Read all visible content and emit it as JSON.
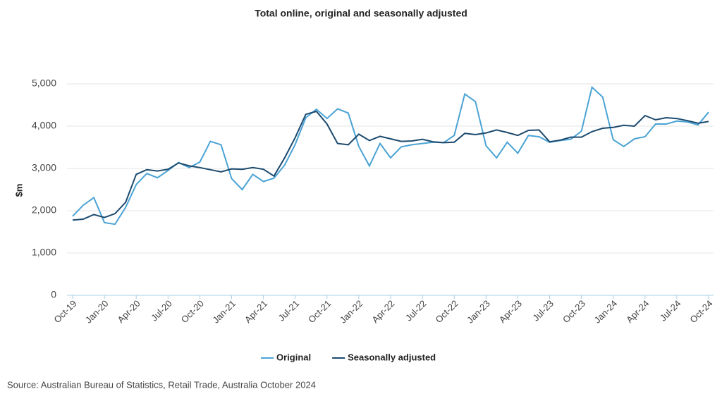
{
  "chart_data": {
    "type": "line",
    "title": "Total online, original and seasonally adjusted",
    "y_label": "$m",
    "source": "Source: Australian Bureau of Statistics, Retail Trade, Australia October 2024",
    "categories": [
      "Oct-19",
      null,
      null,
      "Jan-20",
      null,
      null,
      "Apr-20",
      null,
      null,
      "Jul-20",
      null,
      null,
      "Oct-20",
      null,
      null,
      "Jan-21",
      null,
      null,
      "Apr-21",
      null,
      null,
      "Jul-21",
      null,
      null,
      "Oct-21",
      null,
      null,
      "Jan-22",
      null,
      null,
      "Apr-22",
      null,
      null,
      "Jul-22",
      null,
      null,
      "Oct-22",
      null,
      null,
      "Jan-23",
      null,
      null,
      "Apr-23",
      null,
      null,
      "Jul-23",
      null,
      null,
      "Oct-23",
      null,
      null,
      "Jan-24",
      null,
      null,
      "Apr-24",
      null,
      null,
      "Jul-24",
      null,
      null,
      "Oct-24"
    ],
    "series": [
      {
        "name": "Original",
        "color": "#4aa3d4",
        "values": [
          1870,
          2130,
          2310,
          1720,
          1680,
          2080,
          2620,
          2880,
          2780,
          2950,
          3140,
          3020,
          3150,
          3640,
          3560,
          2760,
          2500,
          2860,
          2690,
          2770,
          3080,
          3570,
          4200,
          4400,
          4180,
          4410,
          4310,
          3520,
          3060,
          3590,
          3250,
          3510,
          3560,
          3590,
          3620,
          3610,
          3780,
          4760,
          4580,
          3540,
          3250,
          3620,
          3360,
          3780,
          3750,
          3620,
          3660,
          3690,
          3880,
          4920,
          4690,
          3680,
          3520,
          3700,
          3750,
          4050,
          4050,
          4120,
          4100,
          4030,
          4330
        ]
      },
      {
        "name": "Seasonally adjusted",
        "color": "#1c4a6e",
        "values": [
          1780,
          1800,
          1910,
          1840,
          1930,
          2200,
          2860,
          2970,
          2940,
          2980,
          3130,
          3060,
          3020,
          2970,
          2920,
          2990,
          2980,
          3020,
          2980,
          2820,
          3250,
          3730,
          4280,
          4350,
          4050,
          3590,
          3560,
          3810,
          3660,
          3760,
          3700,
          3640,
          3650,
          3690,
          3630,
          3610,
          3620,
          3830,
          3800,
          3840,
          3910,
          3850,
          3780,
          3900,
          3910,
          3630,
          3670,
          3740,
          3740,
          3870,
          3950,
          3970,
          4020,
          4000,
          4250,
          4150,
          4200,
          4180,
          4130,
          4070,
          4110
        ]
      }
    ],
    "ylim": [
      0,
      5000
    ],
    "yticks": [
      0,
      {
        "value": 1000,
        "label": "1,000"
      },
      {
        "value": 2000,
        "label": "2,000"
      },
      {
        "value": 3000,
        "label": "3,000"
      },
      {
        "value": 4000,
        "label": "4,000"
      },
      {
        "value": 5000,
        "label": "5,000"
      }
    ],
    "grid": true
  }
}
